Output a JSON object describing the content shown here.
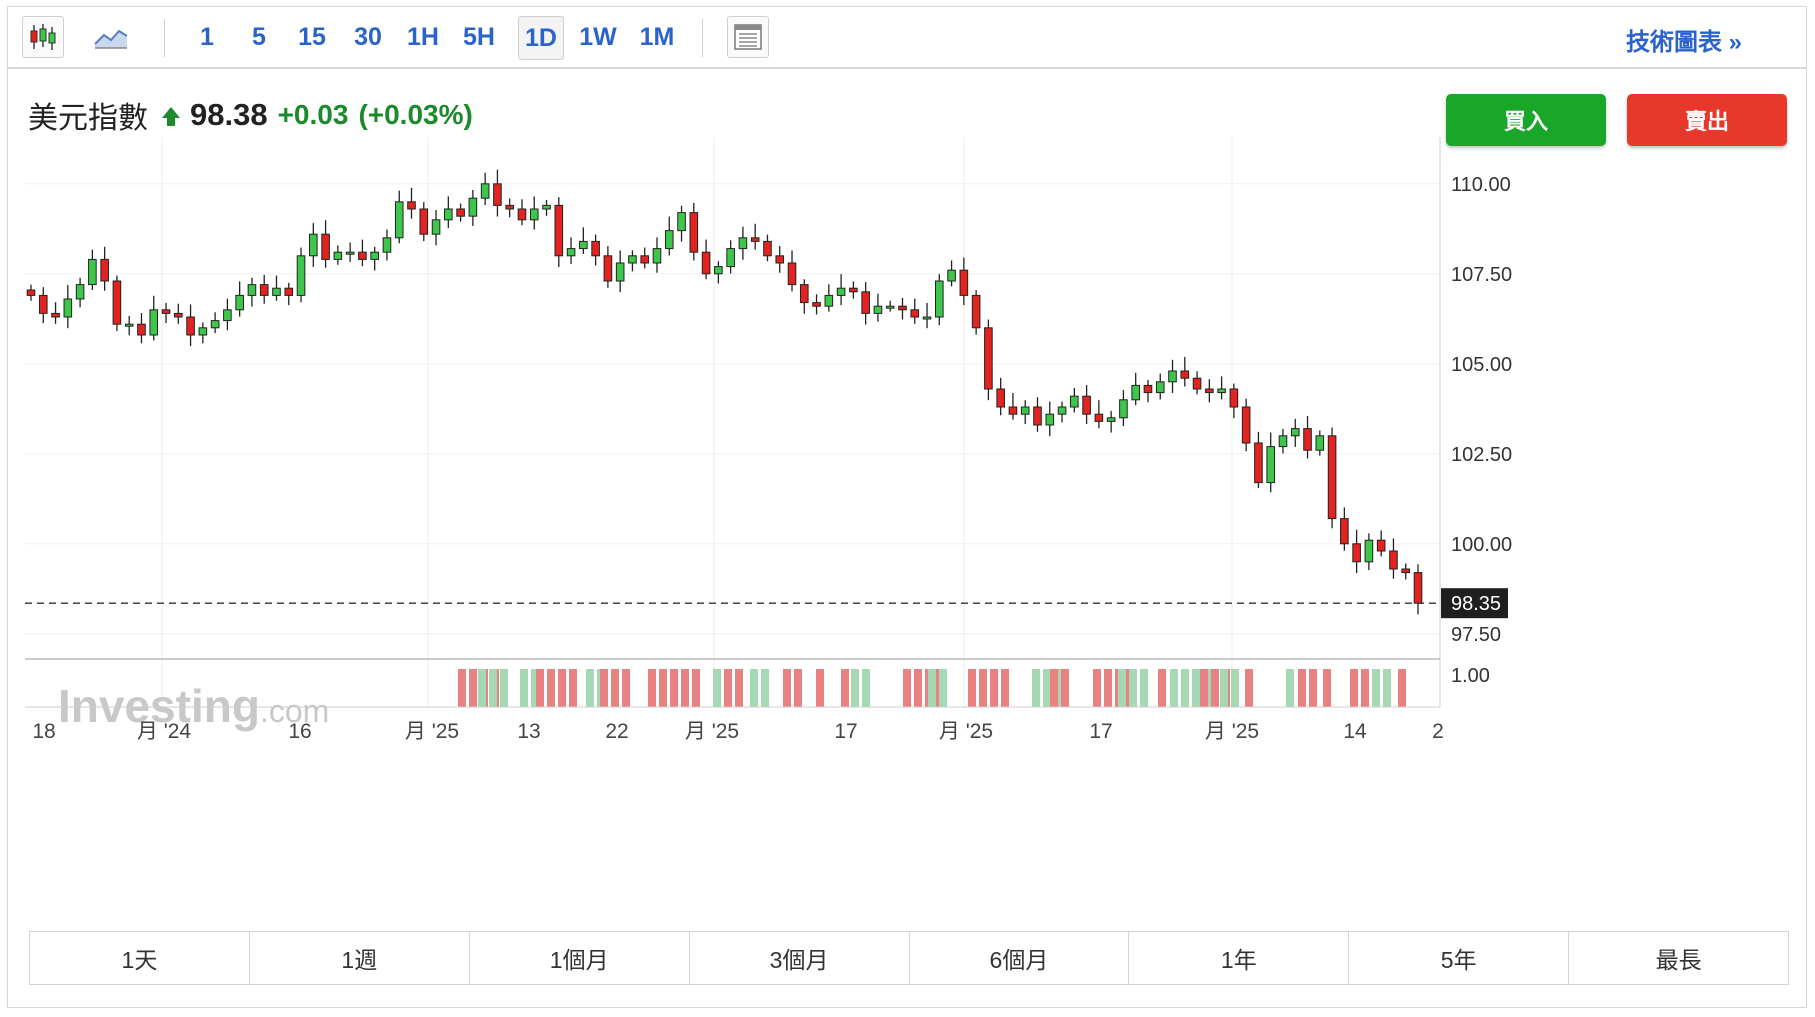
{
  "toolbar": {
    "chart_type_icons": [
      "candlestick-icon",
      "area-chart-icon"
    ],
    "timeframes": [
      "1",
      "5",
      "15",
      "30",
      "1H",
      "5H",
      "1D",
      "1W",
      "1M"
    ],
    "active_timeframe": "1D",
    "layout_icon": "layout-icon",
    "tech_chart_label": "技術圖表 »"
  },
  "instrument": {
    "name": "美元指數",
    "price": "98.38",
    "change": "+0.03",
    "change_pct": "(+0.03%)",
    "direction_icon": "arrow-up-icon"
  },
  "actions": {
    "buy_label": "買入",
    "sell_label": "賣出"
  },
  "colors": {
    "up": "#3cc64a",
    "down": "#e3231f",
    "up_volume": "#a6d9b3",
    "down_volume": "#e88282",
    "price_change": "#1a8a2b",
    "link": "#2a63c9"
  },
  "watermark": "Investing.com",
  "range_buttons": [
    "1天",
    "1週",
    "1個月",
    "3個月",
    "6個月",
    "1年",
    "5年",
    "最長"
  ],
  "chart_data": {
    "type": "candlestick",
    "interval": "1D",
    "y_ticks": [
      "110.00",
      "107.50",
      "105.00",
      "102.50",
      "100.00",
      "97.50"
    ],
    "ylim": [
      96.8,
      111.3
    ],
    "current_price_label": "98.35",
    "current_price": 98.35,
    "volume_axis_label": "1.00",
    "x_tick_labels": [
      "18",
      "月 '24",
      "16",
      "月 '25",
      "13",
      "22",
      "月 '25",
      "17",
      "月 '25",
      "17",
      "月 '25",
      "14",
      "2"
    ],
    "closes": [
      106.9,
      106.4,
      106.3,
      106.8,
      107.2,
      107.9,
      107.3,
      106.1,
      106.1,
      105.8,
      106.5,
      106.4,
      106.3,
      105.8,
      106.0,
      106.2,
      106.5,
      106.9,
      107.2,
      106.9,
      107.1,
      106.9,
      108.0,
      108.6,
      107.9,
      108.1,
      108.1,
      107.9,
      108.1,
      108.5,
      109.5,
      109.3,
      108.6,
      109.0,
      109.3,
      109.1,
      109.6,
      110.0,
      109.4,
      109.3,
      109.0,
      109.3,
      109.4,
      108.0,
      108.2,
      108.4,
      108.0,
      107.3,
      107.8,
      108.0,
      107.8,
      108.2,
      108.7,
      109.2,
      108.1,
      107.5,
      107.7,
      108.2,
      108.5,
      108.4,
      108.0,
      107.8,
      107.2,
      106.7,
      106.6,
      106.9,
      107.1,
      107.0,
      106.4,
      106.6,
      106.6,
      106.5,
      106.3,
      106.3,
      107.3,
      107.6,
      106.9,
      106.0,
      104.3,
      103.8,
      103.6,
      103.8,
      103.3,
      103.6,
      103.8,
      104.1,
      103.6,
      103.4,
      103.5,
      104.0,
      104.4,
      104.2,
      104.5,
      104.8,
      104.6,
      104.3,
      104.2,
      104.3,
      103.8,
      102.8,
      101.7,
      102.7,
      103.0,
      103.2,
      102.6,
      103.0,
      100.7,
      100.0,
      99.5,
      100.1,
      99.8,
      99.3,
      99.2,
      98.35
    ]
  }
}
